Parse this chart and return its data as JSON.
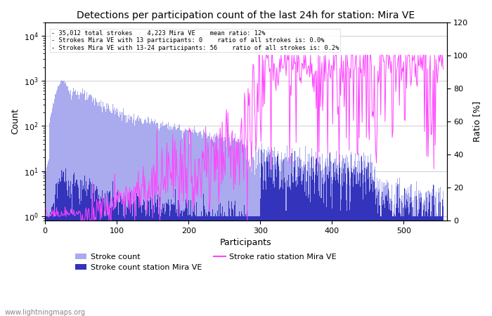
{
  "title": "Detections per participation count of the last 24h for station: Mira VE",
  "xlabel": "Participants",
  "ylabel_left": "Count",
  "ylabel_right": "Ratio [%]",
  "annotation_lines": [
    "35,012 total strokes    4,223 Mira VE    mean ratio: 12%",
    "Strokes Mira VE with 13 participants: 0    ratio of all strokes is: 0.0%",
    "Strokes Mira VE with 13-24 participants: 56    ratio of all strokes is: 0.2%"
  ],
  "xlim": [
    0,
    560
  ],
  "ylim_left": [
    0.8,
    20000
  ],
  "ylim_right": [
    0,
    120
  ],
  "color_stroke_total": "#aaaaee",
  "color_stroke_station": "#3333bb",
  "color_ratio": "#ff44ff",
  "legend_entries": [
    "Stroke count",
    "Stroke count station Mira VE",
    "Stroke ratio station Mira VE"
  ],
  "watermark": "www.lightningmaps.org",
  "grid_color": "#bbbbbb",
  "yticks_right": [
    0,
    20,
    40,
    60,
    80,
    100,
    120
  ],
  "title_fontsize": 10,
  "figsize": [
    7.0,
    4.5
  ],
  "dpi": 100
}
